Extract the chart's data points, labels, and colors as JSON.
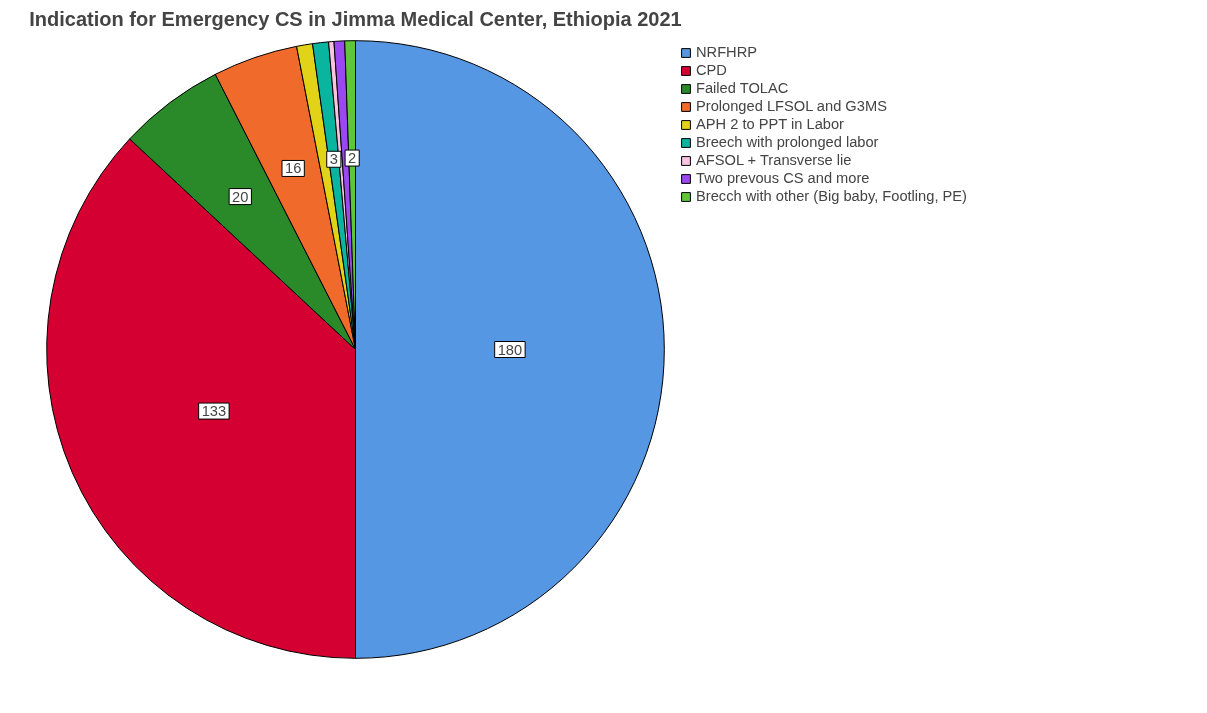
{
  "chart_data": {
    "type": "pie",
    "title": "Indication for Emergency CS in Jimma Medical Center, Ethiopia 2021",
    "categories": [
      "NRFHRP",
      "CPD",
      "Failed TOLAC",
      "Prolonged LFSOL and G3MS",
      "APH 2 to PPT in Labor",
      "Breech with prolonged labor",
      "AFSOL + Transverse lie",
      "Two prevous CS and more",
      "Brecch with other (Big baby, Footling, PE)"
    ],
    "values": [
      180,
      133,
      20,
      16,
      3,
      3,
      1,
      2,
      2
    ],
    "value_labels": [
      "180",
      "133",
      "20",
      "16",
      null,
      "3",
      null,
      null,
      "2"
    ],
    "colors": [
      "#5597e3",
      "#d50032",
      "#2a8a2a",
      "#f06a2b",
      "#e2d318",
      "#0ab5a0",
      "#f9c4e0",
      "#9b48f0",
      "#5fc63a"
    ],
    "legend": "top right"
  }
}
